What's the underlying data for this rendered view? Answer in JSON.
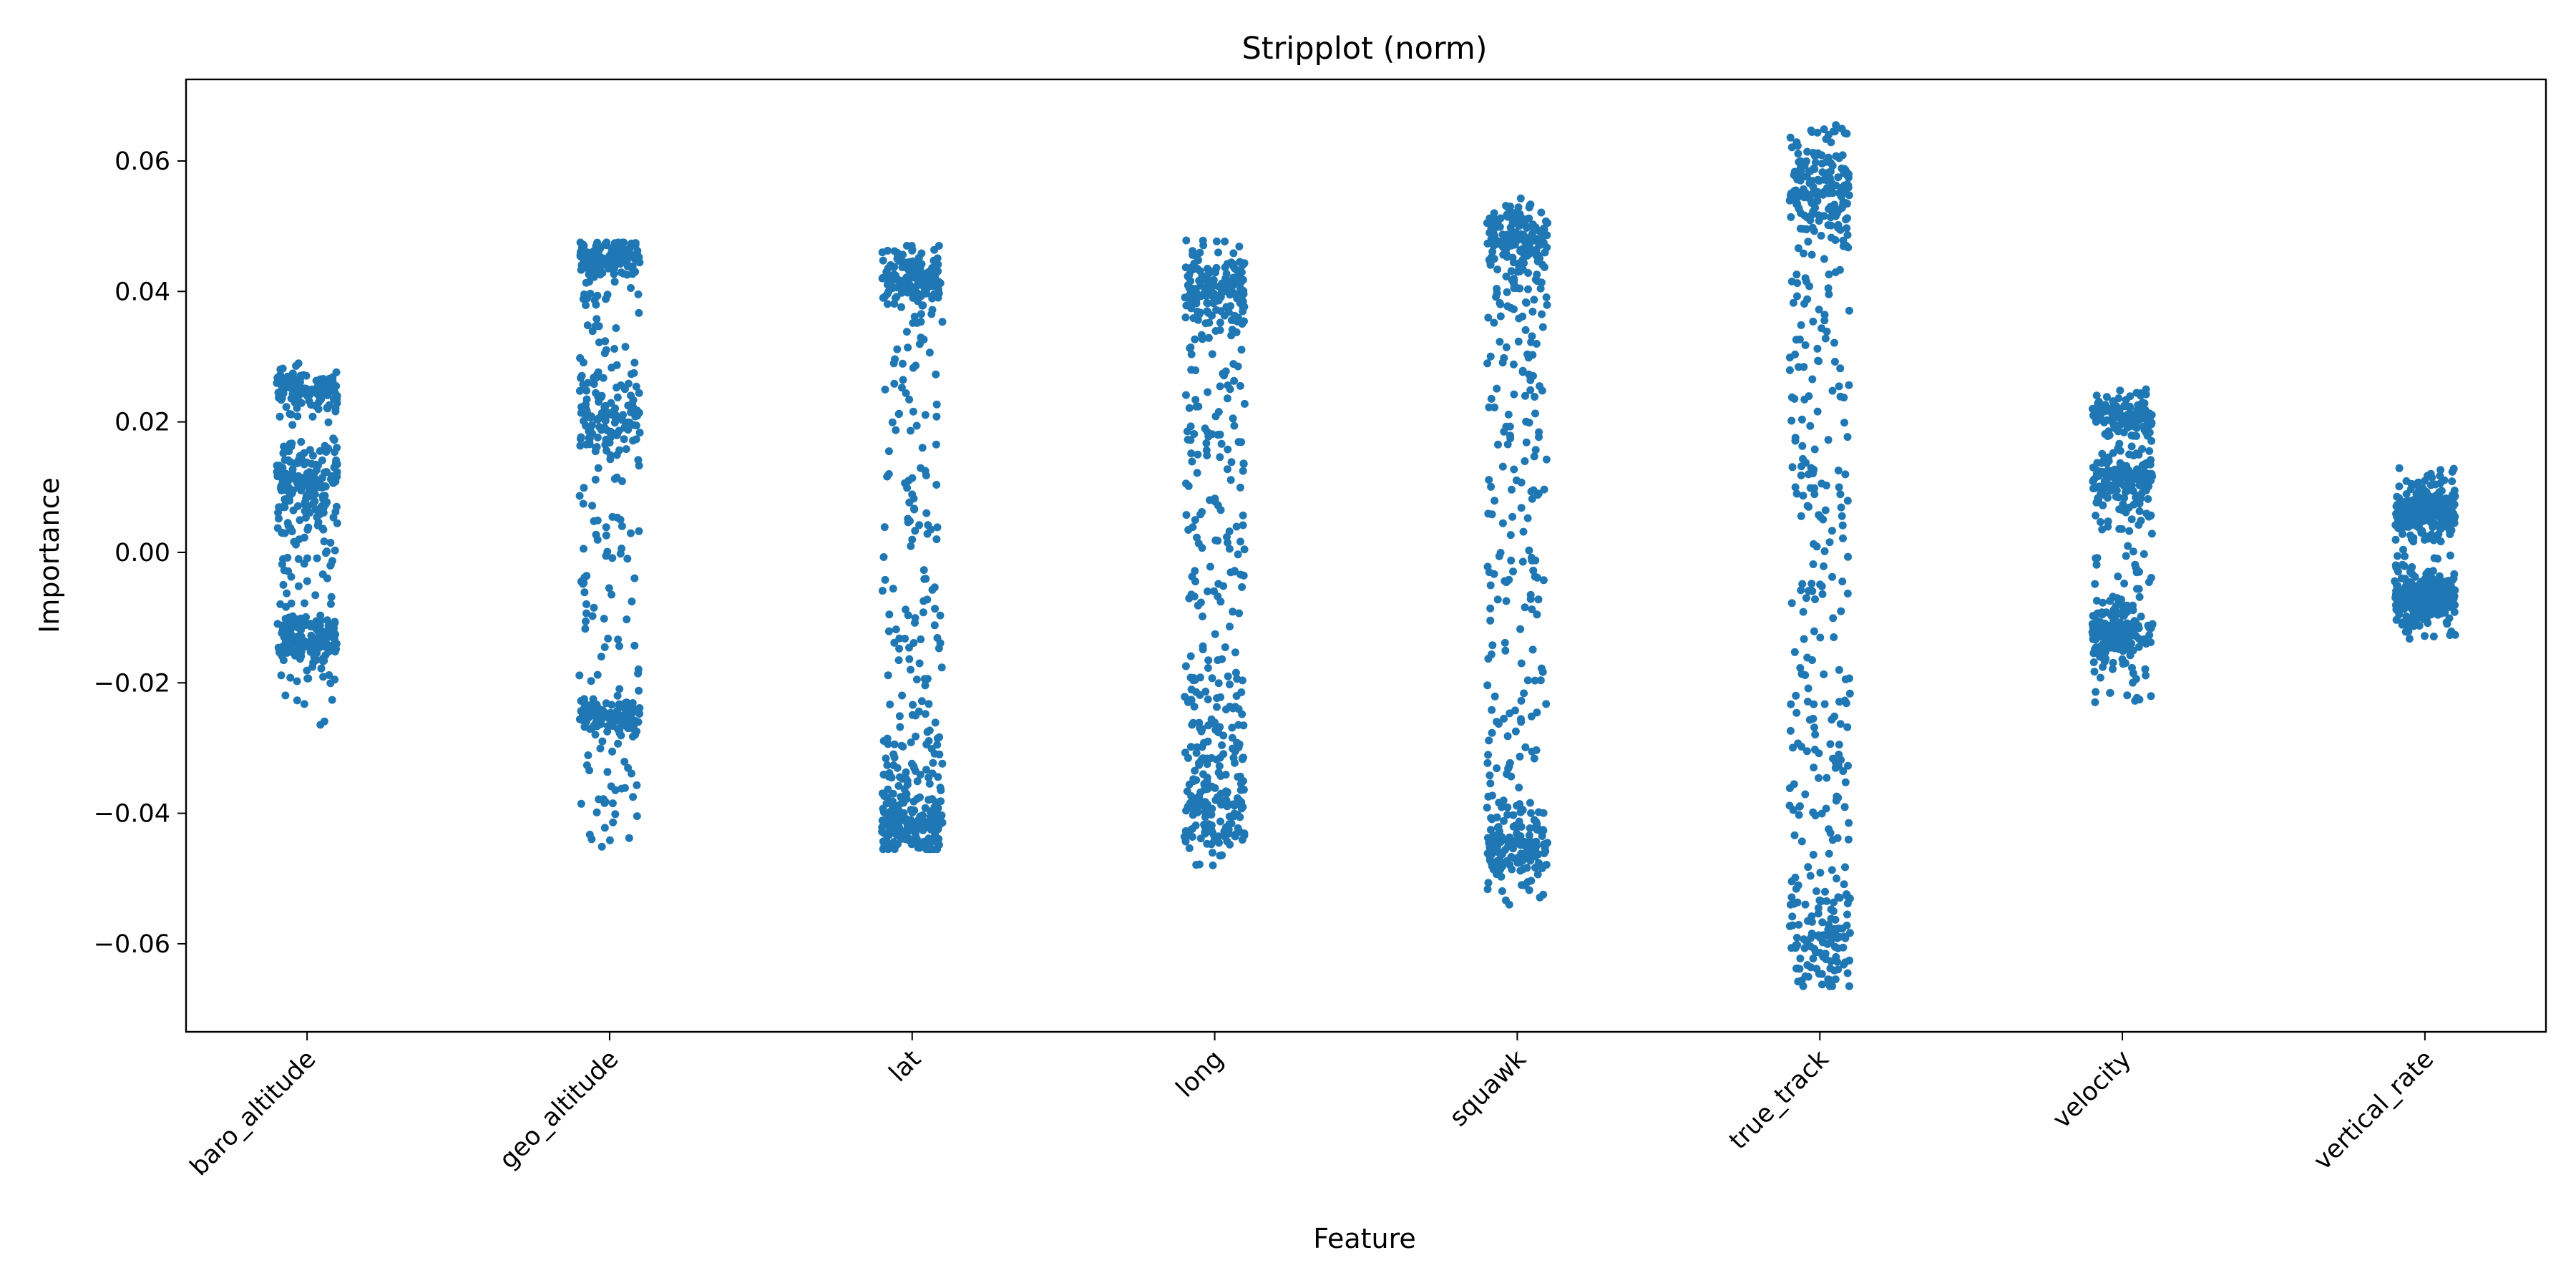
{
  "chart_data": {
    "type": "scatter",
    "title": "Stripplot (norm)",
    "xlabel": "Feature",
    "ylabel": "Importance",
    "ylim": [
      -0.0735,
      0.0725
    ],
    "yticks": [
      0.06,
      0.04,
      0.02,
      0.0,
      -0.02,
      -0.04,
      -0.06
    ],
    "ytick_labels": [
      "0.06",
      "0.04",
      "0.02",
      "0.00",
      "−0.02",
      "−0.04",
      "−0.06"
    ],
    "categories": [
      "baro_altitude",
      "geo_altitude",
      "lat",
      "long",
      "squawk",
      "true_track",
      "velocity",
      "vertical_rate"
    ],
    "grid": false,
    "legend": "none",
    "marker_color": "#1f77b4",
    "jitter_halfwidth": 0.1,
    "points_per_category": 500,
    "distributions": [
      {
        "name": "baro_altitude",
        "min": -0.0265,
        "max": 0.0295,
        "clusters": [
          {
            "center": 0.025,
            "sd": 0.0015,
            "weight": 0.22
          },
          {
            "center": 0.01,
            "sd": 0.004,
            "weight": 0.33
          },
          {
            "center": -0.013,
            "sd": 0.002,
            "weight": 0.25
          }
        ],
        "uniform_weight": 0.2
      },
      {
        "name": "geo_altitude",
        "min": -0.0455,
        "max": 0.0475,
        "clusters": [
          {
            "center": 0.045,
            "sd": 0.0015,
            "weight": 0.22
          },
          {
            "center": 0.02,
            "sd": 0.003,
            "weight": 0.18
          },
          {
            "center": -0.025,
            "sd": 0.0015,
            "weight": 0.2
          }
        ],
        "uniform_weight": 0.4
      },
      {
        "name": "lat",
        "min": -0.0455,
        "max": 0.047,
        "clusters": [
          {
            "center": 0.042,
            "sd": 0.002,
            "weight": 0.28
          },
          {
            "center": -0.042,
            "sd": 0.002,
            "weight": 0.22
          },
          {
            "center": -0.035,
            "sd": 0.004,
            "weight": 0.12
          }
        ],
        "uniform_weight": 0.38
      },
      {
        "name": "long",
        "min": -0.048,
        "max": 0.048,
        "clusters": [
          {
            "center": 0.04,
            "sd": 0.003,
            "weight": 0.28
          },
          {
            "center": -0.04,
            "sd": 0.003,
            "weight": 0.18
          },
          {
            "center": -0.03,
            "sd": 0.004,
            "weight": 0.1
          }
        ],
        "uniform_weight": 0.44
      },
      {
        "name": "squawk",
        "min": -0.054,
        "max": 0.0545,
        "clusters": [
          {
            "center": 0.048,
            "sd": 0.003,
            "weight": 0.28
          },
          {
            "center": -0.045,
            "sd": 0.003,
            "weight": 0.22
          }
        ],
        "uniform_weight": 0.5
      },
      {
        "name": "true_track",
        "min": -0.0665,
        "max": 0.0655,
        "clusters": [
          {
            "center": 0.056,
            "sd": 0.004,
            "weight": 0.28
          },
          {
            "center": -0.06,
            "sd": 0.004,
            "weight": 0.16
          }
        ],
        "uniform_weight": 0.56
      },
      {
        "name": "velocity",
        "min": -0.023,
        "max": 0.025,
        "clusters": [
          {
            "center": 0.021,
            "sd": 0.0015,
            "weight": 0.22
          },
          {
            "center": 0.011,
            "sd": 0.002,
            "weight": 0.22
          },
          {
            "center": -0.012,
            "sd": 0.002,
            "weight": 0.28
          }
        ],
        "uniform_weight": 0.28
      },
      {
        "name": "vertical_rate",
        "min": -0.0135,
        "max": 0.0135,
        "clusters": [
          {
            "center": 0.006,
            "sd": 0.002,
            "weight": 0.44
          },
          {
            "center": -0.007,
            "sd": 0.002,
            "weight": 0.44
          }
        ],
        "uniform_weight": 0.12
      }
    ]
  }
}
